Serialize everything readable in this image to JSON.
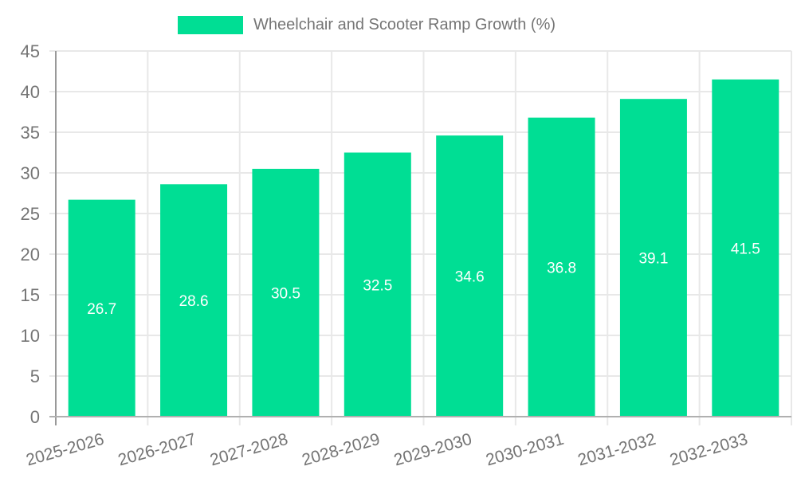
{
  "chart_data": {
    "type": "bar",
    "title": "Wheelchair and Scooter Ramp Growth (%)",
    "categories": [
      "2025-2026",
      "2026-2027",
      "2027-2028",
      "2028-2029",
      "2029-2030",
      "2030-2031",
      "2031-2032",
      "2032-2033"
    ],
    "values": [
      26.7,
      28.6,
      30.5,
      32.5,
      34.6,
      36.8,
      39.1,
      41.5
    ],
    "xlabel": "",
    "ylabel": "",
    "ylim": [
      0,
      45
    ],
    "yticks": [
      0,
      5,
      10,
      15,
      20,
      25,
      30,
      35,
      40,
      45
    ],
    "grid": true,
    "legend_position": "top-center",
    "x_label_rotation_deg": -16,
    "colors": {
      "bar": "#00de94",
      "value_label": "#ffffff",
      "axis_text": "#757575",
      "gridline": "#e8e8e8",
      "baseline": "#b0b0b0",
      "y_spine": "#999999"
    }
  }
}
